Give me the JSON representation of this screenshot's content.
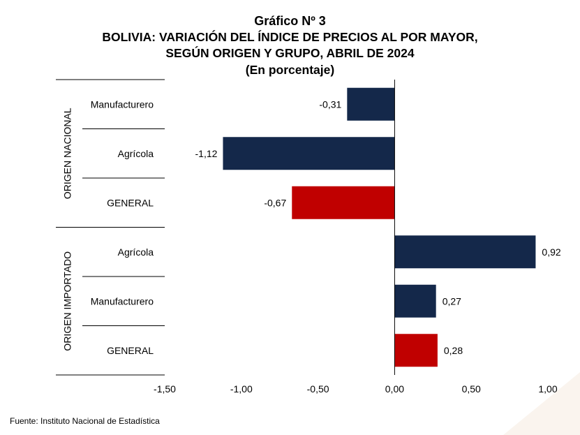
{
  "title": {
    "line1": "Gráfico Nº 3",
    "line2": "BOLIVIA: VARIACIÓN DEL ÍNDICE DE PRECIOS AL POR MAYOR,",
    "line3": "SEGÚN ORIGEN Y GRUPO, ABRIL DE 2024",
    "line4": "(En porcentaje)"
  },
  "source": "Fuente: Instituto Nacional de Estadística",
  "colors": {
    "component": "#14284a",
    "general": "#c00000"
  },
  "chart_data": {
    "type": "bar",
    "orientation": "horizontal",
    "groups": [
      {
        "label": "ORIGEN NACIONAL",
        "categories": [
          "Manufacturero",
          "Agrícola",
          "GENERAL"
        ]
      },
      {
        "label": "ORIGEN IMPORTADO",
        "categories": [
          "Agrícola",
          "Manufacturero",
          "GENERAL"
        ]
      }
    ],
    "categories": [
      "Manufacturero",
      "Agrícola",
      "GENERAL",
      "Agrícola",
      "Manufacturero",
      "GENERAL"
    ],
    "values": [
      -0.31,
      -1.12,
      -0.67,
      0.92,
      0.27,
      0.28
    ],
    "value_labels": [
      "-0,31",
      "-1,12",
      "-0,67",
      "0,92",
      "0,27",
      "0,28"
    ],
    "highlight": [
      false,
      false,
      true,
      false,
      false,
      true
    ],
    "xlim": [
      -1.5,
      1.0
    ],
    "xticks": [
      -1.5,
      -1.0,
      -0.5,
      0.0,
      0.5,
      1.0
    ],
    "xtick_labels": [
      "-1,50",
      "-1,00",
      "-0,50",
      "0,00",
      "0,50",
      "1,00"
    ],
    "grid": false,
    "legend": "none"
  }
}
